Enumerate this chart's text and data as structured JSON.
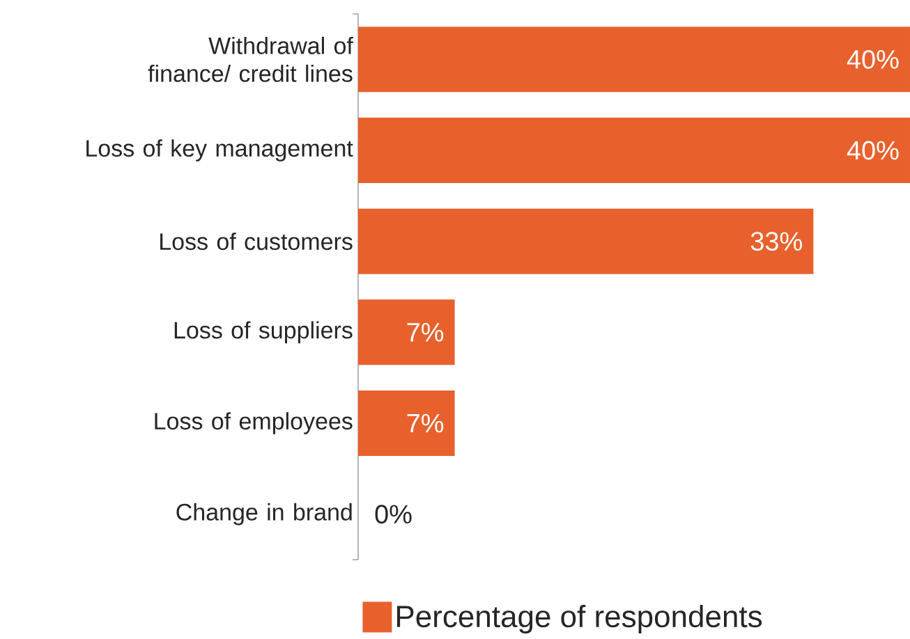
{
  "chart_data": {
    "type": "bar",
    "orientation": "horizontal",
    "categories": [
      "Withdrawal of finance/ credit lines",
      "Loss of key management",
      "Loss of customers",
      "Loss of suppliers",
      "Loss of employees",
      "Change in brand"
    ],
    "series": [
      {
        "name": "Percentage of respondents",
        "color": "#e8612c",
        "values": [
          40,
          40,
          33,
          7,
          7,
          0
        ],
        "value_labels": [
          "40%",
          "40%",
          "33%",
          "7%",
          "7%",
          "0%"
        ]
      }
    ],
    "legend": "bottom",
    "tick_labels": "y"
  }
}
